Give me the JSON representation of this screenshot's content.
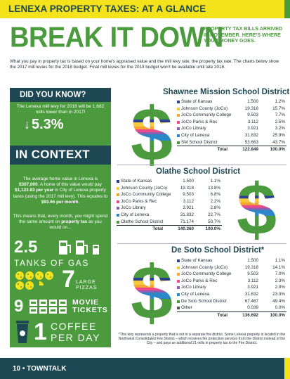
{
  "header": {
    "title": "LENEXA PROPERTY TAXES: AT A GLANCE"
  },
  "headline": "BREAK IT DOWN",
  "subhead": "PROPERTY TAX BILLS ARRIVED IN NOVEMBER. HERE'S WHERE YOUR MONEY GOES.",
  "intro": "What you pay in property tax is based on your home's appraised value and the mill levy rate, the property tax rate. The charts below show the 2017 mill levies for the 2018 budget. Final mill levies for the 2019 budget won't be available until late 2018.",
  "did_you_know": {
    "heading": "DID YOU KNOW?",
    "text": "The Lenexa mill levy for 2018 will be 1.682 mills lower than in 2017!",
    "arrow": "↓",
    "stat": "5.3%"
  },
  "in_context": {
    "heading": "IN CONTEXT",
    "text1a": "The average home value in Lenexa is ",
    "text1b": "$307,000",
    "text1c": ". A home of this value would pay ",
    "text1d": "$1,123.83 per year",
    "text1e": " in City of Lenexa property taxes (using the 2017 mill levy). This equates to ",
    "text1f": "$93.65 per month",
    "text1g": ".",
    "text2a": "This means that, every month, you might spend the same amount on ",
    "text2b": "property tax",
    "text2c": " as you would on...",
    "items": [
      {
        "num": "2.5",
        "label": "TANKS OF GAS"
      },
      {
        "num": "7",
        "label1": "LARGE",
        "label2": "PIZZAS"
      },
      {
        "num": "9",
        "label1": "MOVIE",
        "label2": "TICKETS"
      },
      {
        "num": "1",
        "label1": "COFFEE",
        "label2": "PER DAY"
      }
    ]
  },
  "colors": {
    "kansas": "#2b3f93",
    "johnson": "#f5c93b",
    "jocc": "#f4a531",
    "parks": "#ef4a8c",
    "library": "#8e5fb0",
    "city": "#2a88c8",
    "school": "#4b9a3d",
    "other": "#555555"
  },
  "chart_data": [
    {
      "type": "table",
      "title": "Shawnee Mission School District",
      "rows": [
        {
          "name": "State of Kansas",
          "value": "1.500",
          "pct": "1.2%",
          "color": "kansas"
        },
        {
          "name": "Johnson County (JoCo)",
          "value": "19.318",
          "pct": "15.7%",
          "color": "johnson"
        },
        {
          "name": "JoCo Community College",
          "value": "9.503",
          "pct": "7.7%",
          "color": "jocc"
        },
        {
          "name": "JoCo Parks & Rec",
          "value": "3.112",
          "pct": "2.5%",
          "color": "parks"
        },
        {
          "name": "JoCo Library",
          "value": "3.921",
          "pct": "3.2%",
          "color": "library"
        },
        {
          "name": "City of Lenexa",
          "value": "31.832",
          "pct": "25.9%",
          "color": "city"
        },
        {
          "name": "SM School District",
          "value": "53.663",
          "pct": "43.7%",
          "color": "school"
        }
      ],
      "total": {
        "label": "Total",
        "value": "122.849",
        "pct": "100.0%"
      }
    },
    {
      "type": "table",
      "title": "Olathe School District",
      "rows": [
        {
          "name": "State of Kansas",
          "value": "1.500",
          "pct": "1.1%",
          "color": "kansas"
        },
        {
          "name": "Johnson County (JoCo)",
          "value": "19.318",
          "pct": "13.8%",
          "color": "johnson"
        },
        {
          "name": "JoCo Community College",
          "value": "9.503",
          "pct": "6.8%",
          "color": "jocc"
        },
        {
          "name": "JoCo Parks & Rec",
          "value": "3.112",
          "pct": "2.2%",
          "color": "parks"
        },
        {
          "name": "JoCo Library",
          "value": "3.921",
          "pct": "2.8%",
          "color": "library"
        },
        {
          "name": "City of Lenexa",
          "value": "31.832",
          "pct": "22.7%",
          "color": "city"
        },
        {
          "name": "Olathe School District",
          "value": "71.174",
          "pct": "50.7%",
          "color": "school"
        }
      ],
      "total": {
        "label": "Total",
        "value": "140.360",
        "pct": "100.0%"
      }
    },
    {
      "type": "table",
      "title": "De Soto School District*",
      "rows": [
        {
          "name": "State of Kansas",
          "value": "1.500",
          "pct": "1.1%",
          "color": "kansas"
        },
        {
          "name": "Johnson County (JoCo)",
          "value": "19.318",
          "pct": "14.1%",
          "color": "johnson"
        },
        {
          "name": "JoCo Community College",
          "value": "9.503",
          "pct": "7.0%",
          "color": "jocc"
        },
        {
          "name": "JoCo Parks & Rec",
          "value": "3.112",
          "pct": "2.3%",
          "color": "parks"
        },
        {
          "name": "JoCo Library",
          "value": "3.921",
          "pct": "2.9%",
          "color": "library"
        },
        {
          "name": "City of Lenexa",
          "value": "31.832",
          "pct": "23.3%",
          "color": "city"
        },
        {
          "name": "De Soto School District",
          "value": "67.467",
          "pct": "49.4%",
          "color": "school"
        },
        {
          "name": "Other",
          "value": "0.039",
          "pct": "0.0%",
          "color": "other"
        }
      ],
      "total": {
        "label": "Total",
        "value": "136.692",
        "pct": "100.0%"
      }
    }
  ],
  "footnote": "*This levy represents a property that is not in a separate fire district. Some Lenexa property is located in the Northwest Consolidated Fire District – which receives fire protection services from the District instead of the City – and pays an additional 21 mills in property tax to the Fire District.",
  "footer": {
    "label": "10 • TOWNTALK"
  }
}
